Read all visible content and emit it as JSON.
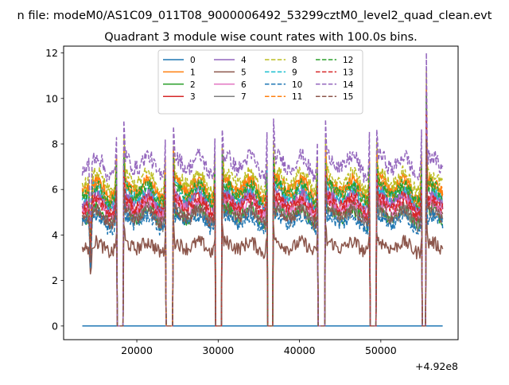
{
  "suptitle": "n file: modeM0/AS1C09_011T08_9000006492_53299cztM0_level2_quad_clean.evt",
  "chart_data": {
    "type": "line",
    "title": "Quadrant 3 module wise count rates with 100.0s bins.",
    "xlabel": "",
    "ylabel": "",
    "x_offset_label": "+4.92e8",
    "xlim": [
      11000,
      59500
    ],
    "ylim": [
      -0.6,
      12.3
    ],
    "x_ticks": [
      20000,
      30000,
      40000,
      50000
    ],
    "x_tick_labels": [
      "20000",
      "30000",
      "40000",
      "50000"
    ],
    "y_ticks": [
      0,
      2,
      4,
      6,
      8,
      10,
      12
    ],
    "y_tick_labels": [
      "0",
      "2",
      "4",
      "6",
      "8",
      "10",
      "12"
    ],
    "x_range": [
      13300,
      57600
    ],
    "bin_s": 100,
    "gaps": [
      [
        17600,
        18300
      ],
      [
        23600,
        24400
      ],
      [
        29700,
        30400
      ],
      [
        36100,
        36700
      ],
      [
        42300,
        43100
      ],
      [
        48700,
        49400
      ],
      [
        55100,
        55500
      ]
    ],
    "legend_position": "upper center",
    "series": [
      {
        "name": "0",
        "color": "#1f77b4",
        "dashed": false,
        "base": 0.0,
        "noise": 0.0
      },
      {
        "name": "1",
        "color": "#ff7f0e",
        "dashed": false,
        "base": 6.1,
        "noise": 0.3
      },
      {
        "name": "2",
        "color": "#2ca02c",
        "dashed": false,
        "base": 4.9,
        "noise": 0.35
      },
      {
        "name": "3",
        "color": "#d62728",
        "dashed": false,
        "base": 5.4,
        "noise": 0.3
      },
      {
        "name": "4",
        "color": "#9467bd",
        "dashed": false,
        "base": 5.6,
        "noise": 0.3
      },
      {
        "name": "5",
        "color": "#8c564b",
        "dashed": false,
        "base": 3.5,
        "noise": 0.3
      },
      {
        "name": "6",
        "color": "#e377c2",
        "dashed": false,
        "base": 5.2,
        "noise": 0.3
      },
      {
        "name": "7",
        "color": "#7f7f7f",
        "dashed": false,
        "base": 4.8,
        "noise": 0.3
      },
      {
        "name": "8",
        "color": "#bcbd22",
        "dashed": true,
        "base": 6.4,
        "noise": 0.3
      },
      {
        "name": "9",
        "color": "#17becf",
        "dashed": true,
        "base": 5.8,
        "noise": 0.3
      },
      {
        "name": "10",
        "color": "#1f77b4",
        "dashed": true,
        "base": 4.6,
        "noise": 0.3
      },
      {
        "name": "11",
        "color": "#ff7f0e",
        "dashed": true,
        "base": 6.0,
        "noise": 0.3
      },
      {
        "name": "12",
        "color": "#2ca02c",
        "dashed": true,
        "base": 5.9,
        "noise": 0.3
      },
      {
        "name": "13",
        "color": "#d62728",
        "dashed": true,
        "base": 5.3,
        "noise": 0.3
      },
      {
        "name": "14",
        "color": "#9467bd",
        "dashed": true,
        "base": 7.1,
        "noise": 0.35
      },
      {
        "name": "15",
        "color": "#8c564b",
        "dashed": true,
        "base": 4.9,
        "noise": 0.3
      }
    ]
  }
}
